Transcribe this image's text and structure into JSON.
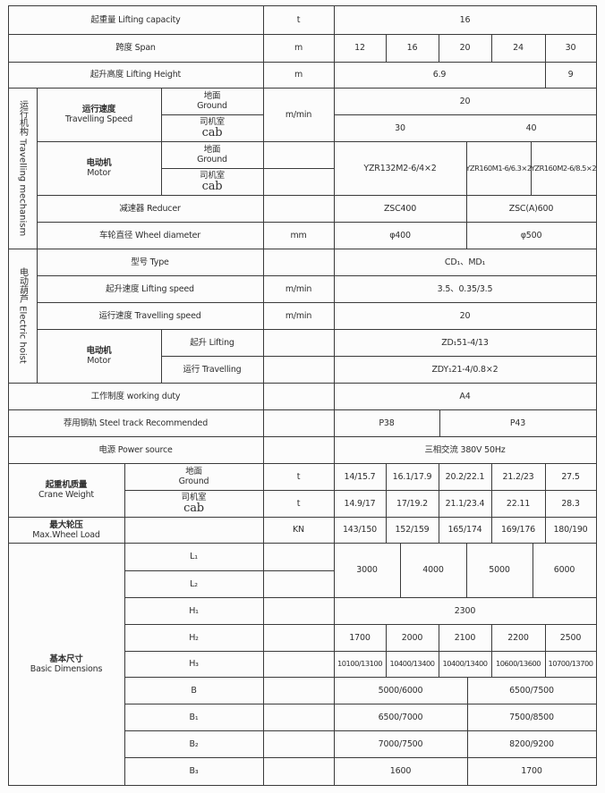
{
  "lifting_capacity": {
    "label": "起重量 Lifting capacity",
    "unit": "t",
    "value": "16"
  },
  "span": {
    "label": "跨度 Span",
    "unit": "m",
    "values": [
      "12",
      "16",
      "20",
      "24",
      "30"
    ]
  },
  "lifting_height": {
    "label": "起升高度 Lifting Height",
    "unit": "m",
    "values": [
      "6.9",
      "9"
    ]
  },
  "travelling_mechanism": {
    "group_label": "运行机构 Travelling mechanism",
    "speed": {
      "label_cn": "运行速度",
      "label_en": "Travelling Speed",
      "unit": "m/min",
      "ground_value": "20",
      "cab_values": [
        "30",
        "40"
      ]
    },
    "motor": {
      "label_cn": "电动机",
      "label_en": "Motor",
      "values": [
        "YZR132M2-6/4×2",
        "YZR160M1-6/6.3×2",
        "YZR160M2-6/8.5×2"
      ]
    },
    "reducer": {
      "label": "减速器 Reducer",
      "values": [
        "ZSC400",
        "ZSC(A)600"
      ]
    },
    "wheel": {
      "label": "车轮直径 Wheel diameter",
      "unit": "mm",
      "values": [
        "φ400",
        "φ500"
      ]
    }
  },
  "sub_labels": {
    "ground_cn": "地面",
    "ground_en": "Ground",
    "cab_cn": "司机室",
    "cab_en": "cab"
  },
  "electric_hoist": {
    "group_label": "电动葫芦 Electric hoist",
    "type": {
      "label": "型号 Type",
      "value": "CD₁、MD₁"
    },
    "lifting_speed": {
      "label": "起升速度 Lifting speed",
      "unit": "m/min",
      "value": "3.5、0.35/3.5"
    },
    "travelling_speed": {
      "label": "运行速度 Travelling speed",
      "unit": "m/min",
      "value": "20"
    },
    "motor": {
      "label_cn": "电动机",
      "label_en": "Motor",
      "lifting_label": "起升 Lifting",
      "travelling_label": "运行 Travelling",
      "lifting_value": "ZD₁51-4/13",
      "travelling_value": "ZDY₁21-4/0.8×2"
    }
  },
  "working_duty": {
    "label": "工作制度 working duty",
    "value": "A4"
  },
  "steel_track": {
    "label": "荐用钢轨 Steel track Recommended",
    "values": [
      "P38",
      "P43"
    ]
  },
  "power_source": {
    "label": "电源 Power source",
    "value": "三相交流  380V  50Hz"
  },
  "crane_weight": {
    "label_cn": "起重机质量",
    "label_en": "Crane Weight",
    "unit": "t",
    "ground_values": [
      "14/15.7",
      "16.1/17.9",
      "20.2/22.1",
      "21.2/23",
      "27.5"
    ],
    "cab_values": [
      "14.9/17",
      "17/19.2",
      "21.1/23.4",
      "22.11",
      "28.3"
    ]
  },
  "max_wheel_load": {
    "label_cn": "最大轮压",
    "label_en": "Max.Wheel Load",
    "unit": "KN",
    "values": [
      "143/150",
      "152/159",
      "165/174",
      "169/176",
      "180/190"
    ]
  },
  "basic_dimensions": {
    "label_cn": "基本尺寸",
    "label_en": "Basic Dimensions",
    "L1": {
      "label": "L₁"
    },
    "L2": {
      "label": "L₂"
    },
    "L_values": [
      "3000",
      "4000",
      "5000",
      "6000"
    ],
    "H1": {
      "label": "H₁",
      "value": "2300"
    },
    "H2": {
      "label": "H₂",
      "values": [
        "1700",
        "2000",
        "2100",
        "2200",
        "2500"
      ]
    },
    "H3": {
      "label": "H₃",
      "values": [
        "10100/13100",
        "10400/13400",
        "10400/13400",
        "10600/13600",
        "10700/13700"
      ]
    },
    "B": {
      "label": "B",
      "values": [
        "5000/6000",
        "6500/7500"
      ]
    },
    "B1": {
      "label": "B₁",
      "values": [
        "6500/7000",
        "7500/8500"
      ]
    },
    "B2": {
      "label": "B₂",
      "values": [
        "7000/7500",
        "8200/9200"
      ]
    },
    "B3": {
      "label": "B₃",
      "values": [
        "1600",
        "1700"
      ]
    }
  }
}
